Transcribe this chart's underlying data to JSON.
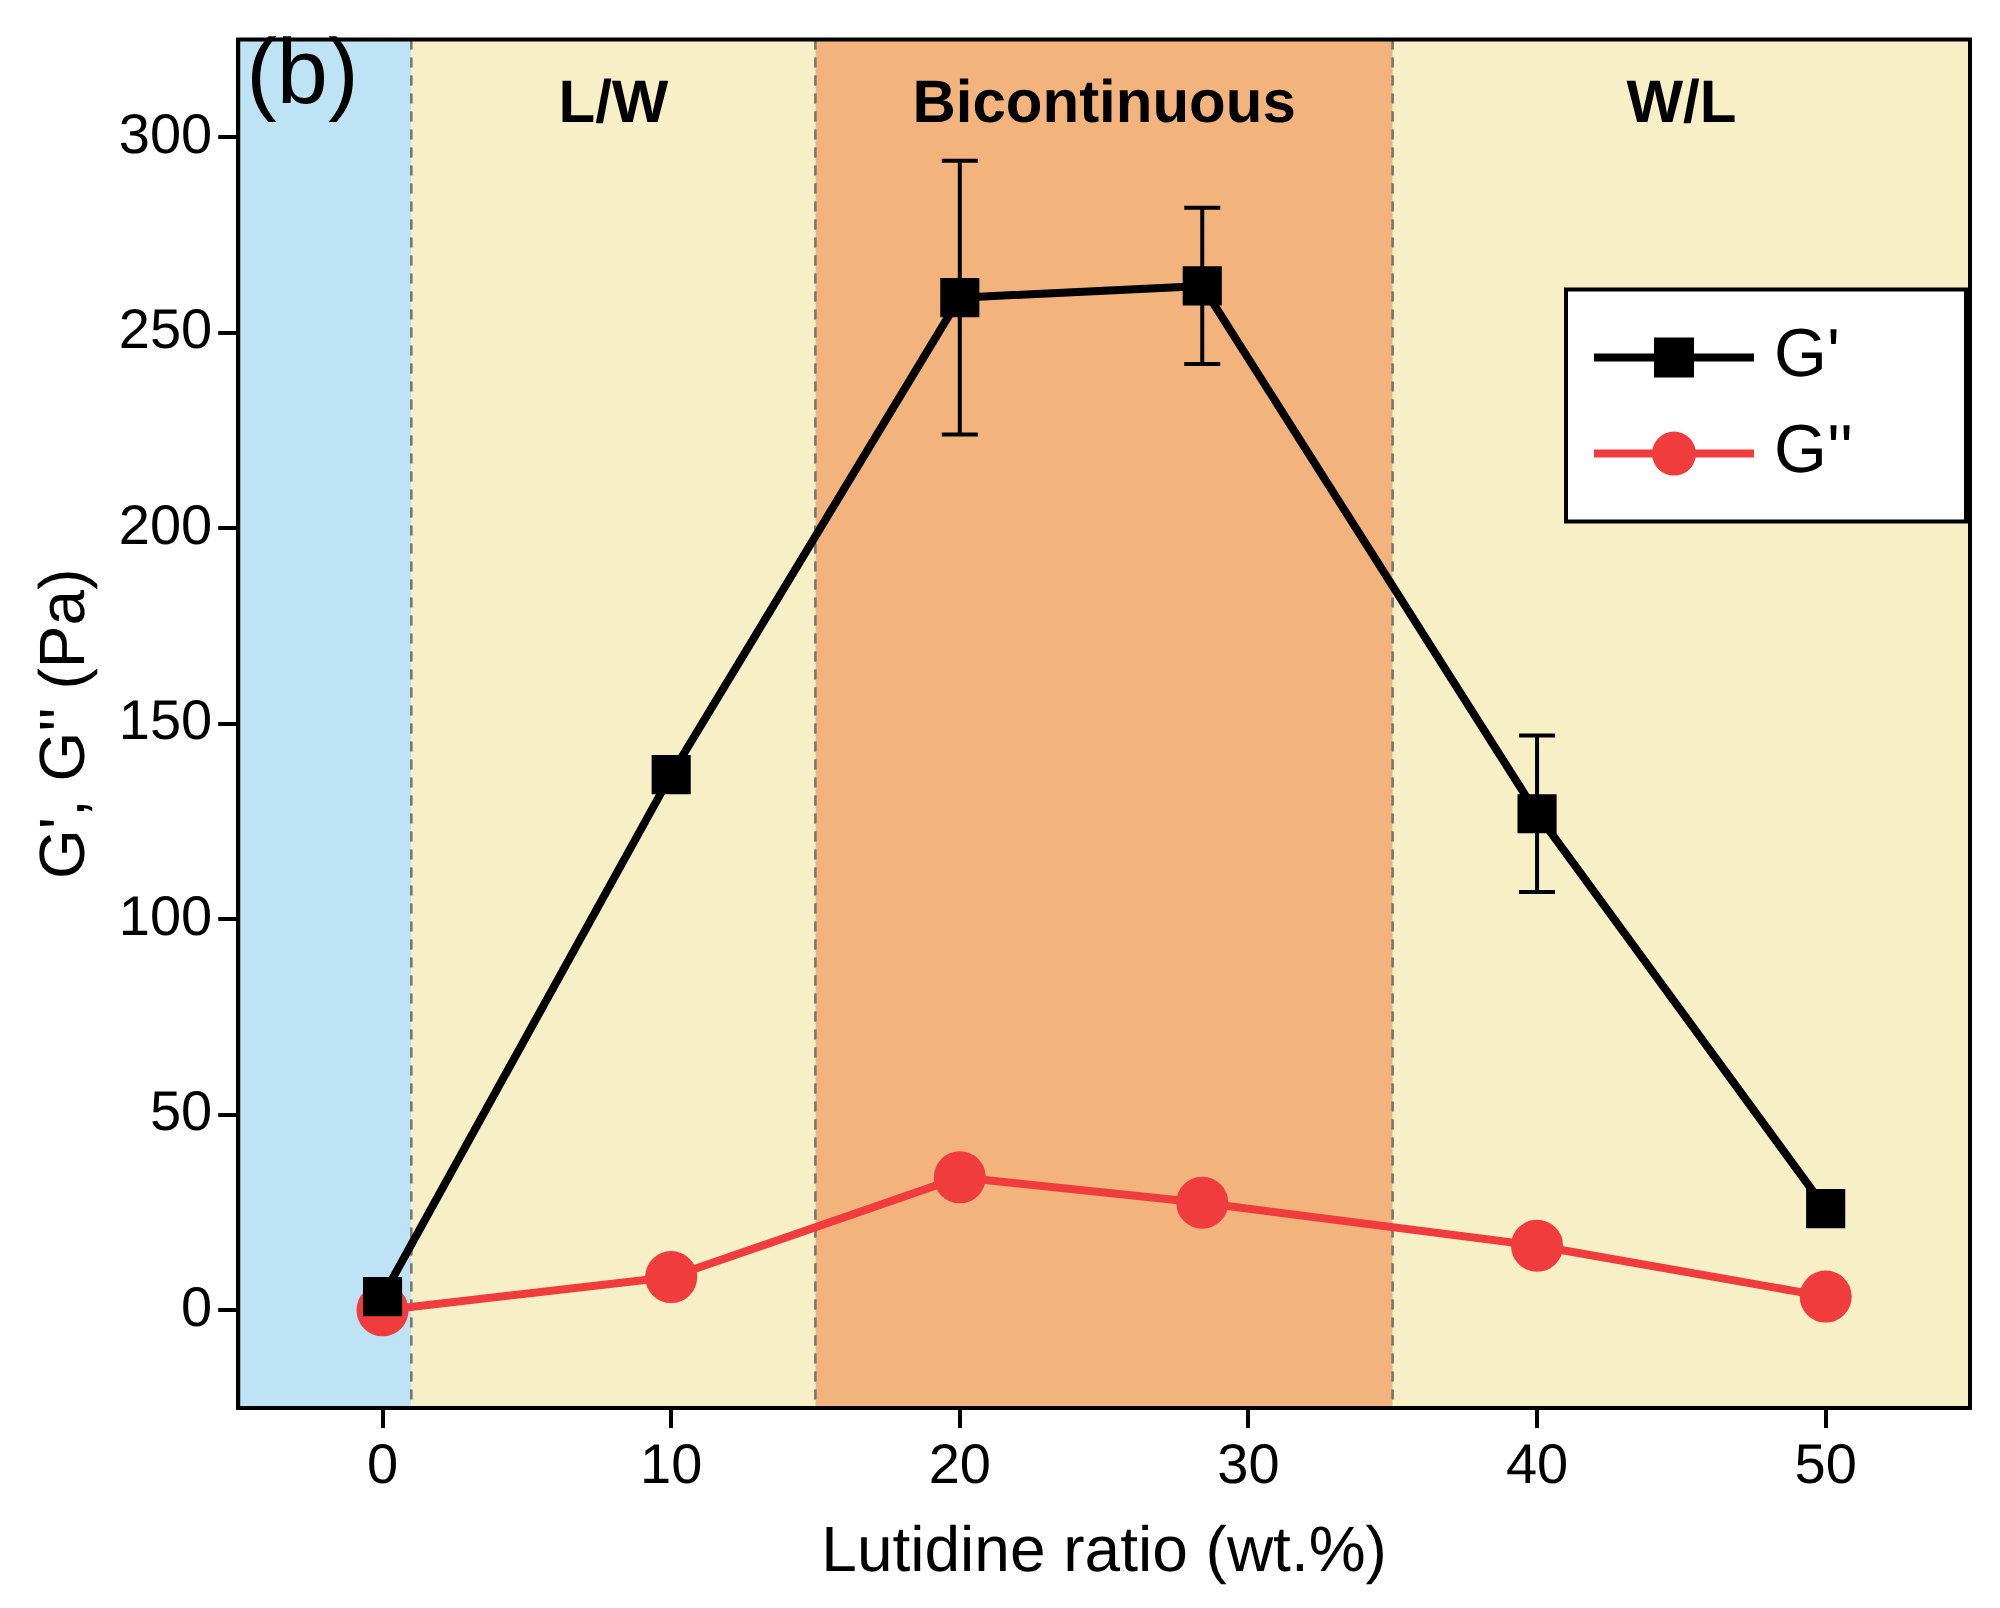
{
  "chart_data": {
    "type": "line",
    "xlabel": "Lutidine ratio (wt.%)",
    "ylabel": "G', G'' (Pa)",
    "xlim": [
      -5,
      55
    ],
    "xticks": [
      0,
      10,
      20,
      30,
      40,
      50
    ],
    "ylim": [
      -25,
      325
    ],
    "yticks": [
      0,
      50,
      100,
      150,
      200,
      250,
      300
    ],
    "grid": false,
    "legend": "top right",
    "line_style": "solid",
    "annotations": [
      "(b)"
    ],
    "bands": [
      {
        "axis": "x",
        "from": -5,
        "to": 1,
        "label": null,
        "color": "#bde3f5"
      },
      {
        "axis": "x",
        "from": 1,
        "to": 15,
        "label": "L/W",
        "color": "#f7efc6"
      },
      {
        "axis": "x",
        "from": 15,
        "to": 35,
        "label": "Bicontinuous",
        "color": "#f2b47c"
      },
      {
        "axis": "x",
        "from": 35,
        "to": 55,
        "label": "W/L",
        "color": "#f7efc6"
      }
    ],
    "series": [
      {
        "name": "G'",
        "color": "#000000",
        "marker": "square",
        "x": [
          0,
          10,
          20,
          28.4,
          40,
          50
        ],
        "values": [
          3.5,
          137,
          259,
          262,
          127,
          26
        ],
        "errors": [
          null,
          null,
          35,
          20,
          20,
          null
        ]
      },
      {
        "name": "G''",
        "color": "#f03c3c",
        "marker": "circle",
        "x": [
          0,
          10,
          20,
          28.4,
          40,
          50
        ],
        "values": [
          0,
          8.5,
          34,
          27.5,
          16.5,
          3.5
        ]
      }
    ]
  }
}
